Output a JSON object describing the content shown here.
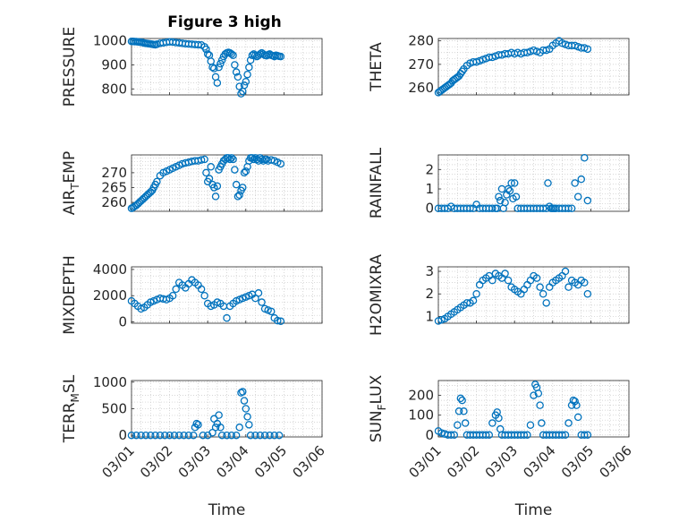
{
  "figure": {
    "title": "Figure 3 high",
    "marker_color": "#0072BD",
    "axis_color": "#262626",
    "grid_color": "#c8c8c8"
  },
  "chart_data": [
    {
      "type": "scatter",
      "title": "Figure 3 high",
      "ylabel": "PRESSURE",
      "xlabel": "",
      "xlim": [
        "03/01",
        "03/06"
      ],
      "ylim": [
        775,
        1010
      ],
      "yticks": [
        800,
        900,
        1000
      ],
      "grid": "minor-dotted",
      "x": [
        "03/01 00:00",
        "03/01 01:00",
        "03/01 02:00",
        "03/01 03:00",
        "03/01 04:00",
        "03/01 05:00",
        "03/01 06:00",
        "03/01 07:00",
        "03/01 08:00",
        "03/01 09:00",
        "03/01 10:00",
        "03/01 11:00",
        "03/01 12:00",
        "03/01 13:00",
        "03/01 14:00",
        "03/01 15:00",
        "03/01 16:00",
        "03/01 18:00",
        "03/01 20:00",
        "03/01 22:00",
        "03/02 00:00",
        "03/02 02:00",
        "03/02 04:00",
        "03/02 06:00",
        "03/02 08:00",
        "03/02 10:00",
        "03/02 12:00",
        "03/02 14:00",
        "03/02 16:00",
        "03/02 18:00",
        "03/02 20:00",
        "03/02 22:00",
        "03/02 23:00",
        "03/03 00:00",
        "03/03 01:00",
        "03/03 02:00",
        "03/03 03:00",
        "03/03 04:00",
        "03/03 05:00",
        "03/03 06:00",
        "03/03 07:00",
        "03/03 08:00",
        "03/03 09:00",
        "03/03 10:00",
        "03/03 11:00",
        "03/03 12:00",
        "03/03 13:00",
        "03/03 14:00",
        "03/03 15:00",
        "03/03 16:00",
        "03/03 17:00",
        "03/03 18:00",
        "03/03 19:00",
        "03/03 20:00",
        "03/03 21:00",
        "03/03 22:00",
        "03/03 23:00",
        "03/04 00:00",
        "03/04 01:00",
        "03/04 02:00",
        "03/04 03:00",
        "03/04 04:00",
        "03/04 05:00",
        "03/04 06:00",
        "03/04 07:00",
        "03/04 08:00",
        "03/04 09:00",
        "03/04 10:00",
        "03/04 11:00",
        "03/04 12:00",
        "03/04 13:00",
        "03/04 14:00",
        "03/04 15:00",
        "03/04 16:00",
        "03/04 17:00",
        "03/04 18:00",
        "03/04 19:00",
        "03/04 20:00",
        "03/04 21:00",
        "03/04 22:00"
      ],
      "y": [
        998,
        998,
        997,
        997,
        996,
        995,
        994,
        993,
        991,
        990,
        989,
        988,
        987,
        986,
        985,
        984,
        986,
        990,
        992,
        994,
        996,
        995,
        993,
        992,
        990,
        988,
        987,
        986,
        985,
        984,
        983,
        975,
        965,
        945,
        940,
        915,
        890,
        885,
        850,
        825,
        890,
        905,
        920,
        935,
        945,
        950,
        952,
        950,
        945,
        940,
        900,
        870,
        850,
        810,
        780,
        790,
        815,
        830,
        860,
        890,
        920,
        940,
        945,
        940,
        935,
        940,
        945,
        950,
        945,
        940,
        938,
        942,
        945,
        940,
        938,
        935,
        940,
        938,
        936,
        935
      ]
    },
    {
      "type": "scatter",
      "ylabel": "THETA",
      "xlabel": "",
      "xlim": [
        "03/01",
        "03/06"
      ],
      "ylim": [
        257,
        281
      ],
      "yticks": [
        260,
        270,
        280
      ],
      "grid": "minor-dotted",
      "x": [
        "03/01 00:00",
        "03/01 01:00",
        "03/01 02:00",
        "03/01 03:00",
        "03/01 04:00",
        "03/01 05:00",
        "03/01 06:00",
        "03/01 07:00",
        "03/01 08:00",
        "03/01 09:00",
        "03/01 10:00",
        "03/01 11:00",
        "03/01 12:00",
        "03/01 13:00",
        "03/01 14:00",
        "03/01 15:00",
        "03/01 16:00",
        "03/01 18:00",
        "03/01 20:00",
        "03/01 22:00",
        "03/02 00:00",
        "03/02 02:00",
        "03/02 04:00",
        "03/02 06:00",
        "03/02 08:00",
        "03/02 10:00",
        "03/02 12:00",
        "03/02 14:00",
        "03/02 16:00",
        "03/02 18:00",
        "03/02 20:00",
        "03/02 22:00",
        "03/03 00:00",
        "03/03 02:00",
        "03/03 04:00",
        "03/03 06:00",
        "03/03 08:00",
        "03/03 10:00",
        "03/03 12:00",
        "03/03 14:00",
        "03/03 16:00",
        "03/03 18:00",
        "03/03 20:00",
        "03/03 22:00",
        "03/04 00:00",
        "03/04 02:00",
        "03/04 04:00",
        "03/04 06:00",
        "03/04 08:00",
        "03/04 10:00",
        "03/04 12:00",
        "03/04 14:00",
        "03/04 16:00",
        "03/04 18:00",
        "03/04 20:00",
        "03/04 22:00"
      ],
      "y": [
        258,
        258.5,
        259,
        259.5,
        260,
        260.5,
        261,
        261.5,
        262,
        263,
        263.5,
        264,
        264.5,
        265,
        266,
        267,
        268,
        269.5,
        270.5,
        271,
        271,
        271.5,
        272,
        272.5,
        273,
        273,
        273.5,
        274,
        274,
        274.5,
        274.5,
        275,
        274.5,
        275,
        274.5,
        275,
        275,
        275.5,
        276,
        275.5,
        275,
        276,
        276,
        276.5,
        278,
        279,
        280,
        279,
        278.5,
        278,
        278,
        278,
        277.5,
        277,
        277,
        276.5
      ]
    },
    {
      "type": "scatter",
      "ylabel": "AIR_TEMP",
      "xlabel": "",
      "xlim": [
        "03/01",
        "03/06"
      ],
      "ylim": [
        257,
        276
      ],
      "yticks": [
        260,
        265,
        270
      ],
      "grid": "minor-dotted",
      "x": [
        "03/01 00:00",
        "03/01 01:00",
        "03/01 02:00",
        "03/01 03:00",
        "03/01 04:00",
        "03/01 05:00",
        "03/01 06:00",
        "03/01 07:00",
        "03/01 08:00",
        "03/01 09:00",
        "03/01 10:00",
        "03/01 11:00",
        "03/01 12:00",
        "03/01 13:00",
        "03/01 14:00",
        "03/01 15:00",
        "03/01 16:00",
        "03/01 18:00",
        "03/01 20:00",
        "03/01 22:00",
        "03/02 00:00",
        "03/02 02:00",
        "03/02 04:00",
        "03/02 06:00",
        "03/02 08:00",
        "03/02 10:00",
        "03/02 12:00",
        "03/02 14:00",
        "03/02 16:00",
        "03/02 18:00",
        "03/02 20:00",
        "03/02 22:00",
        "03/02 23:00",
        "03/03 00:00",
        "03/03 01:00",
        "03/03 02:00",
        "03/03 03:00",
        "03/03 04:00",
        "03/03 05:00",
        "03/03 06:00",
        "03/03 07:00",
        "03/03 08:00",
        "03/03 09:00",
        "03/03 10:00",
        "03/03 11:00",
        "03/03 12:00",
        "03/03 13:00",
        "03/03 14:00",
        "03/03 15:00",
        "03/03 16:00",
        "03/03 17:00",
        "03/03 18:00",
        "03/03 19:00",
        "03/03 20:00",
        "03/03 21:00",
        "03/03 22:00",
        "03/03 23:00",
        "03/04 00:00",
        "03/04 01:00",
        "03/04 02:00",
        "03/04 03:00",
        "03/04 04:00",
        "03/04 05:00",
        "03/04 06:00",
        "03/04 07:00",
        "03/04 08:00",
        "03/04 09:00",
        "03/04 10:00",
        "03/04 11:00",
        "03/04 12:00",
        "03/04 13:00",
        "03/04 14:00",
        "03/04 16:00",
        "03/04 18:00",
        "03/04 20:00",
        "03/04 22:00"
      ],
      "y": [
        258,
        258.3,
        258.7,
        259,
        259.5,
        260,
        260.5,
        261,
        261.5,
        262,
        262.5,
        263,
        263.5,
        264,
        265,
        266,
        267,
        269,
        270,
        270.5,
        271,
        271.5,
        272,
        272.5,
        273,
        273.3,
        273.5,
        273.8,
        274,
        274,
        274.3,
        274.5,
        270,
        267,
        268,
        272,
        266,
        265,
        262,
        265.5,
        271,
        272,
        273,
        274,
        274.5,
        275,
        275,
        274.5,
        275,
        274.5,
        271,
        266,
        262,
        262.5,
        264,
        265,
        270,
        270.5,
        272,
        274,
        275,
        275,
        274.5,
        275,
        274.5,
        274,
        275,
        274.5,
        274,
        274.5,
        274.5,
        274,
        274.3,
        274,
        273.5,
        273
      ]
    },
    {
      "type": "scatter",
      "ylabel": "RAINFALL",
      "xlabel": "",
      "xlim": [
        "03/01",
        "03/06"
      ],
      "ylim": [
        -0.15,
        2.75
      ],
      "yticks": [
        0,
        1,
        2
      ],
      "grid": "minor-dotted",
      "x": [
        "03/01 00:00",
        "03/01 02:00",
        "03/01 04:00",
        "03/01 06:00",
        "03/01 08:00",
        "03/01 10:00",
        "03/01 12:00",
        "03/01 14:00",
        "03/01 16:00",
        "03/01 18:00",
        "03/01 20:00",
        "03/01 22:00",
        "03/02 00:00",
        "03/02 02:00",
        "03/02 04:00",
        "03/02 06:00",
        "03/02 08:00",
        "03/02 10:00",
        "03/02 12:00",
        "03/02 13:00",
        "03/02 14:00",
        "03/02 15:00",
        "03/02 16:00",
        "03/02 17:00",
        "03/02 18:00",
        "03/02 19:00",
        "03/02 20:00",
        "03/02 21:00",
        "03/02 22:00",
        "03/02 23:00",
        "03/03 00:00",
        "03/03 01:00",
        "03/03 02:00",
        "03/03 04:00",
        "03/03 06:00",
        "03/03 08:00",
        "03/03 10:00",
        "03/03 12:00",
        "03/03 14:00",
        "03/03 16:00",
        "03/03 18:00",
        "03/03 20:00",
        "03/03 21:00",
        "03/03 22:00",
        "03/03 23:00",
        "03/04 00:00",
        "03/04 01:00",
        "03/04 02:00",
        "03/04 04:00",
        "03/04 06:00",
        "03/04 08:00",
        "03/04 10:00",
        "03/04 12:00",
        "03/04 14:00",
        "03/04 16:00",
        "03/04 18:00",
        "03/04 20:00",
        "03/04 22:00"
      ],
      "y": [
        0,
        0,
        0,
        0,
        0.1,
        0,
        0,
        0,
        0,
        0,
        0,
        0,
        0.2,
        0,
        0,
        0,
        0,
        0,
        0,
        0,
        0.6,
        0.4,
        1.0,
        0,
        0.3,
        0.7,
        1.0,
        0.9,
        1.3,
        0.5,
        1.3,
        0.6,
        0,
        0,
        0,
        0,
        0,
        0,
        0,
        0,
        0,
        0,
        1.3,
        0.1,
        0,
        0,
        0,
        0,
        0,
        0,
        0,
        0,
        0,
        1.3,
        0.6,
        1.5,
        2.6,
        0.4
      ]
    },
    {
      "type": "scatter",
      "ylabel": "MIXDEPTH",
      "xlabel": "",
      "xlim": [
        "03/01",
        "03/06"
      ],
      "ylim": [
        -100,
        4200
      ],
      "yticks": [
        0,
        2000,
        4000
      ],
      "grid": "minor-dotted",
      "x": [
        "03/01 00:00",
        "03/01 02:00",
        "03/01 04:00",
        "03/01 06:00",
        "03/01 08:00",
        "03/01 10:00",
        "03/01 12:00",
        "03/01 14:00",
        "03/01 16:00",
        "03/01 18:00",
        "03/01 20:00",
        "03/01 22:00",
        "03/02 00:00",
        "03/02 02:00",
        "03/02 04:00",
        "03/02 06:00",
        "03/02 08:00",
        "03/02 10:00",
        "03/02 12:00",
        "03/02 14:00",
        "03/02 16:00",
        "03/02 18:00",
        "03/02 20:00",
        "03/02 22:00",
        "03/03 00:00",
        "03/03 02:00",
        "03/03 04:00",
        "03/03 06:00",
        "03/03 08:00",
        "03/03 10:00",
        "03/03 12:00",
        "03/03 14:00",
        "03/03 16:00",
        "03/03 18:00",
        "03/03 20:00",
        "03/03 22:00",
        "03/04 00:00",
        "03/04 02:00",
        "03/04 04:00",
        "03/04 06:00",
        "03/04 08:00",
        "03/04 10:00",
        "03/04 12:00",
        "03/04 14:00",
        "03/04 16:00",
        "03/04 18:00",
        "03/04 20:00",
        "03/04 22:00"
      ],
      "y": [
        1600,
        1400,
        1200,
        1000,
        1100,
        1300,
        1500,
        1600,
        1700,
        1800,
        1750,
        1700,
        1800,
        2000,
        2500,
        3000,
        2800,
        2600,
        2900,
        3200,
        3000,
        2800,
        2500,
        2000,
        1400,
        1200,
        1300,
        1500,
        1400,
        1200,
        300,
        1200,
        1400,
        1600,
        1700,
        1800,
        1900,
        2000,
        2100,
        1800,
        2200,
        1500,
        1000,
        900,
        800,
        300,
        100,
        50
      ]
    },
    {
      "type": "scatter",
      "ylabel": "H2OMIXRA",
      "xlabel": "",
      "xlim": [
        "03/01",
        "03/06"
      ],
      "ylim": [
        0.7,
        3.2
      ],
      "yticks": [
        1,
        2,
        3
      ],
      "grid": "minor-dotted",
      "x": [
        "03/01 00:00",
        "03/01 02:00",
        "03/01 04:00",
        "03/01 06:00",
        "03/01 08:00",
        "03/01 10:00",
        "03/01 12:00",
        "03/01 14:00",
        "03/01 16:00",
        "03/01 18:00",
        "03/01 20:00",
        "03/01 22:00",
        "03/02 00:00",
        "03/02 02:00",
        "03/02 04:00",
        "03/02 06:00",
        "03/02 08:00",
        "03/02 10:00",
        "03/02 12:00",
        "03/02 14:00",
        "03/02 16:00",
        "03/02 18:00",
        "03/02 20:00",
        "03/02 22:00",
        "03/03 00:00",
        "03/03 02:00",
        "03/03 04:00",
        "03/03 06:00",
        "03/03 08:00",
        "03/03 10:00",
        "03/03 12:00",
        "03/03 14:00",
        "03/03 16:00",
        "03/03 18:00",
        "03/03 20:00",
        "03/03 22:00",
        "03/04 00:00",
        "03/04 02:00",
        "03/04 04:00",
        "03/04 06:00",
        "03/04 08:00",
        "03/04 10:00",
        "03/04 12:00",
        "03/04 14:00",
        "03/04 16:00",
        "03/04 18:00",
        "03/04 20:00",
        "03/04 22:00"
      ],
      "y": [
        0.8,
        0.85,
        0.9,
        1.0,
        1.1,
        1.2,
        1.3,
        1.4,
        1.5,
        1.6,
        1.6,
        1.7,
        2.0,
        2.4,
        2.6,
        2.7,
        2.8,
        2.6,
        2.9,
        2.8,
        2.7,
        2.9,
        2.6,
        2.3,
        2.2,
        2.1,
        2.0,
        2.2,
        2.4,
        2.6,
        2.8,
        2.7,
        2.3,
        2.0,
        1.6,
        2.3,
        2.5,
        2.6,
        2.7,
        2.8,
        3.0,
        2.3,
        2.6,
        2.5,
        2.4,
        2.6,
        2.5,
        2.0
      ]
    },
    {
      "type": "scatter",
      "ylabel": "TERR_MSL",
      "xlabel": "Time",
      "xlim": [
        "03/01",
        "03/06"
      ],
      "ylim": [
        -30,
        1030
      ],
      "yticks": [
        0,
        500,
        1000
      ],
      "xticks": [
        "03/01",
        "03/02",
        "03/03",
        "03/04",
        "03/05",
        "03/06"
      ],
      "grid": "minor-dotted",
      "x": [
        "03/01 00:00",
        "03/01 03:00",
        "03/01 06:00",
        "03/01 09:00",
        "03/01 12:00",
        "03/01 15:00",
        "03/01 18:00",
        "03/01 21:00",
        "03/02 00:00",
        "03/02 03:00",
        "03/02 06:00",
        "03/02 09:00",
        "03/02 12:00",
        "03/02 15:00",
        "03/02 16:00",
        "03/02 17:00",
        "03/02 18:00",
        "03/02 21:00",
        "03/03 00:00",
        "03/03 03:00",
        "03/03 04:00",
        "03/03 05:00",
        "03/03 06:00",
        "03/03 07:00",
        "03/03 08:00",
        "03/03 09:00",
        "03/03 12:00",
        "03/03 15:00",
        "03/03 18:00",
        "03/03 20:00",
        "03/03 21:00",
        "03/03 22:00",
        "03/03 23:00",
        "03/04 00:00",
        "03/04 01:00",
        "03/04 02:00",
        "03/04 03:00",
        "03/04 06:00",
        "03/04 09:00",
        "03/04 12:00",
        "03/04 15:00",
        "03/04 18:00",
        "03/04 21:00"
      ],
      "y": [
        0,
        0,
        0,
        0,
        0,
        0,
        0,
        0,
        0,
        0,
        0,
        0,
        0,
        0,
        150,
        220,
        200,
        0,
        0,
        50,
        310,
        150,
        220,
        380,
        150,
        0,
        0,
        0,
        0,
        150,
        800,
        820,
        650,
        500,
        350,
        200,
        0,
        0,
        0,
        0,
        0,
        0,
        0
      ]
    },
    {
      "type": "scatter",
      "ylabel": "SUN_FLUX",
      "xlabel": "Time",
      "xlim": [
        "03/01",
        "03/06"
      ],
      "ylim": [
        -10,
        275
      ],
      "yticks": [
        0,
        100,
        200
      ],
      "xticks": [
        "03/01",
        "03/02",
        "03/03",
        "03/04",
        "03/05",
        "03/06"
      ],
      "grid": "minor-dotted",
      "x": [
        "03/01 00:00",
        "03/01 02:00",
        "03/01 04:00",
        "03/01 06:00",
        "03/01 08:00",
        "03/01 10:00",
        "03/01 12:00",
        "03/01 13:00",
        "03/01 14:00",
        "03/01 15:00",
        "03/01 16:00",
        "03/01 17:00",
        "03/01 18:00",
        "03/01 20:00",
        "03/01 22:00",
        "03/02 00:00",
        "03/02 02:00",
        "03/02 04:00",
        "03/02 06:00",
        "03/02 08:00",
        "03/02 10:00",
        "03/02 12:00",
        "03/02 13:00",
        "03/02 14:00",
        "03/02 15:00",
        "03/02 16:00",
        "03/02 18:00",
        "03/02 20:00",
        "03/02 22:00",
        "03/03 00:00",
        "03/03 02:00",
        "03/03 04:00",
        "03/03 06:00",
        "03/03 08:00",
        "03/03 10:00",
        "03/03 12:00",
        "03/03 13:00",
        "03/03 14:00",
        "03/03 15:00",
        "03/03 16:00",
        "03/03 17:00",
        "03/03 18:00",
        "03/03 20:00",
        "03/03 22:00",
        "03/04 00:00",
        "03/04 02:00",
        "03/04 04:00",
        "03/04 06:00",
        "03/04 08:00",
        "03/04 10:00",
        "03/04 12:00",
        "03/04 13:00",
        "03/04 14:00",
        "03/04 15:00",
        "03/04 16:00",
        "03/04 18:00",
        "03/04 20:00",
        "03/04 22:00"
      ],
      "y": [
        20,
        10,
        5,
        0,
        0,
        0,
        50,
        120,
        185,
        175,
        120,
        60,
        0,
        0,
        0,
        0,
        0,
        0,
        0,
        0,
        60,
        100,
        115,
        85,
        30,
        0,
        0,
        0,
        0,
        0,
        0,
        0,
        0,
        0,
        50,
        200,
        255,
        240,
        210,
        150,
        60,
        0,
        0,
        0,
        0,
        0,
        0,
        0,
        0,
        60,
        150,
        175,
        170,
        150,
        90,
        0,
        0,
        0
      ]
    }
  ]
}
